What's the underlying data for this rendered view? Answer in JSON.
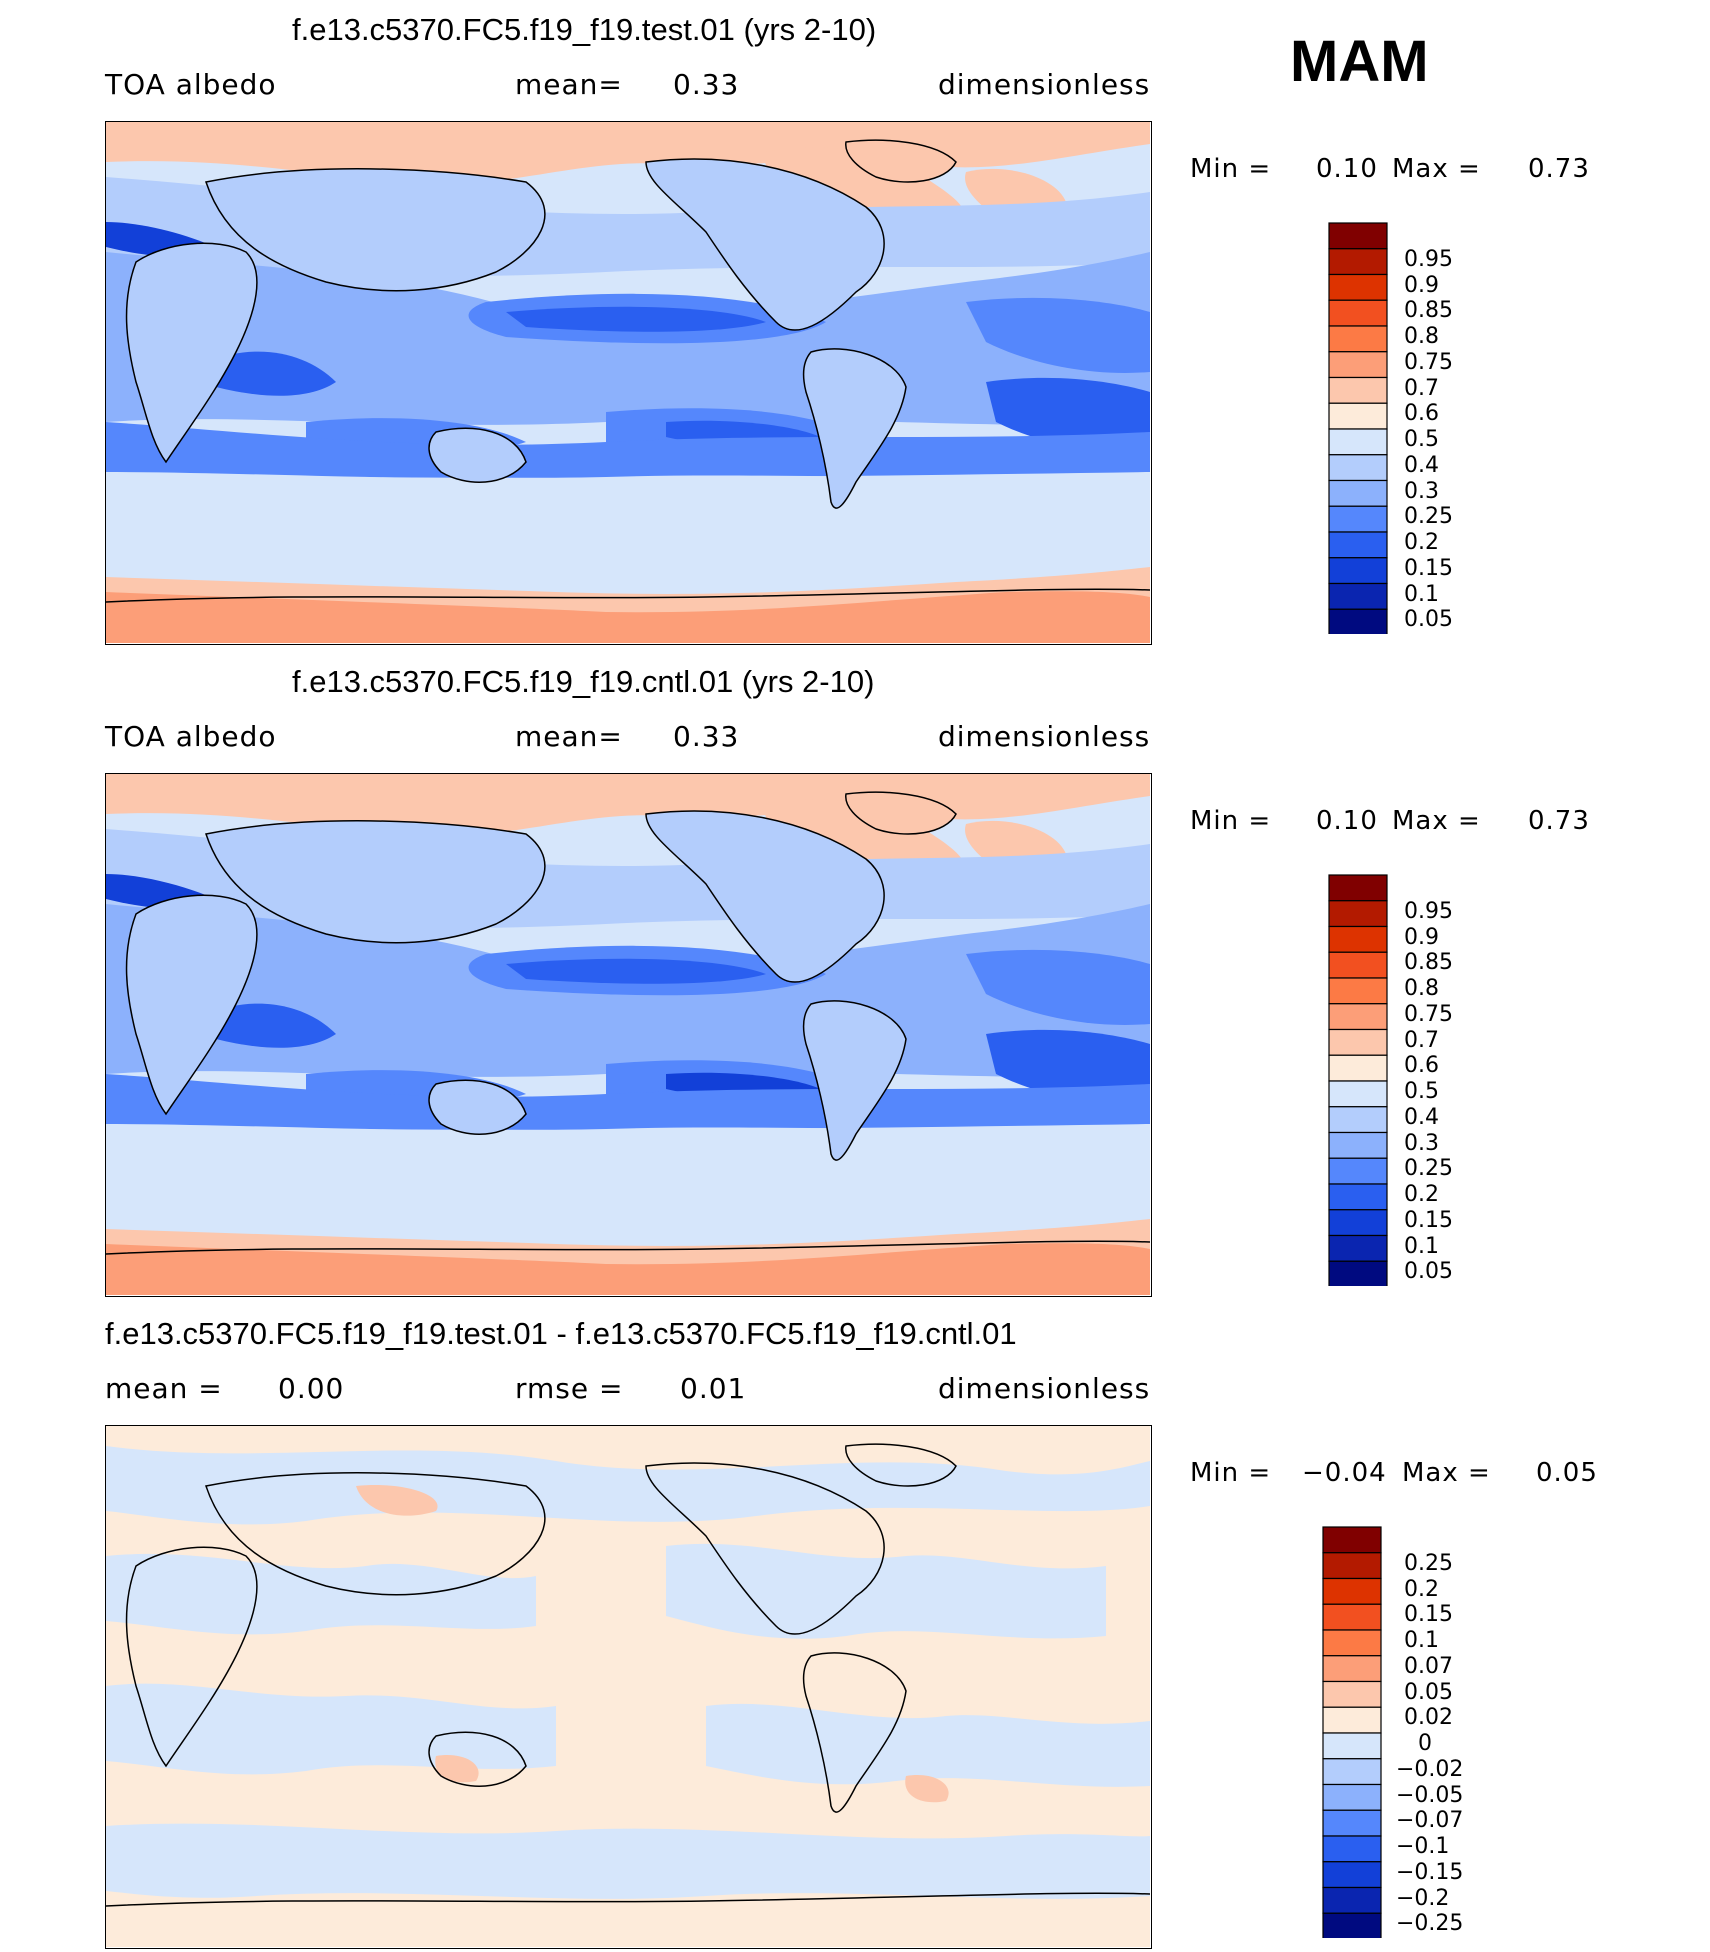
{
  "season": "MAM",
  "panels": [
    {
      "title": "f.e13.c5370.FC5.f19_f19.test.01 (yrs 2-10)",
      "left_label": "TOA  albedo",
      "mid_label": "mean=",
      "mid_value": "0.33",
      "right_label": "dimensionless",
      "min_label": "Min  =",
      "min_value": "0.10",
      "max_label": "Max  =",
      "max_value": "0.73",
      "colorbar": {
        "labels": [
          "0.95",
          "0.9",
          "0.85",
          "0.8",
          "0.75",
          "0.7",
          "0.6",
          "0.5",
          "0.4",
          "0.3",
          "0.25",
          "0.2",
          "0.15",
          "0.1",
          "0.05"
        ],
        "colors": [
          "#800000",
          "#b31a00",
          "#dd3300",
          "#f25020",
          "#fc7a45",
          "#fc9e78",
          "#fcc7ad",
          "#fdebda",
          "#d6e6fb",
          "#b3cdfc",
          "#8cb1fc",
          "#5587fc",
          "#2a5ff0",
          "#1240d8",
          "#0a25b0",
          "#000a80"
        ]
      }
    },
    {
      "title": "f.e13.c5370.FC5.f19_f19.cntl.01 (yrs 2-10)",
      "left_label": "TOA  albedo",
      "mid_label": "mean=",
      "mid_value": "0.33",
      "right_label": "dimensionless",
      "min_label": "Min  =",
      "min_value": "0.10",
      "max_label": "Max  =",
      "max_value": "0.73",
      "colorbar": {
        "labels": [
          "0.95",
          "0.9",
          "0.85",
          "0.8",
          "0.75",
          "0.7",
          "0.6",
          "0.5",
          "0.4",
          "0.3",
          "0.25",
          "0.2",
          "0.15",
          "0.1",
          "0.05"
        ],
        "colors": [
          "#800000",
          "#b31a00",
          "#dd3300",
          "#f25020",
          "#fc7a45",
          "#fc9e78",
          "#fcc7ad",
          "#fdebda",
          "#d6e6fb",
          "#b3cdfc",
          "#8cb1fc",
          "#5587fc",
          "#2a5ff0",
          "#1240d8",
          "#0a25b0",
          "#000a80"
        ]
      }
    },
    {
      "title": "f.e13.c5370.FC5.f19_f19.test.01 - f.e13.c5370.FC5.f19_f19.cntl.01",
      "left_label": "mean  =",
      "left_value": "0.00",
      "mid_label": "rmse  =",
      "mid_value": "0.01",
      "right_label": "dimensionless",
      "min_label": "Min  =",
      "min_value": "−0.04",
      "max_label": "Max  =",
      "max_value": "0.05",
      "colorbar": {
        "labels": [
          "0.25",
          "0.2",
          "0.15",
          "0.1",
          "0.07",
          "0.05",
          "0.02",
          "0",
          "−0.02",
          "−0.05",
          "−0.07",
          "−0.1",
          "−0.15",
          "−0.2",
          "−0.25"
        ],
        "colors": [
          "#800000",
          "#b31a00",
          "#dd3300",
          "#f25020",
          "#fc7a45",
          "#fc9e78",
          "#fcc7ad",
          "#fdebda",
          "#d6e6fb",
          "#b3cdfc",
          "#8cb1fc",
          "#5587fc",
          "#2a5ff0",
          "#1240d8",
          "#0a25b0",
          "#000a80"
        ]
      }
    }
  ]
}
